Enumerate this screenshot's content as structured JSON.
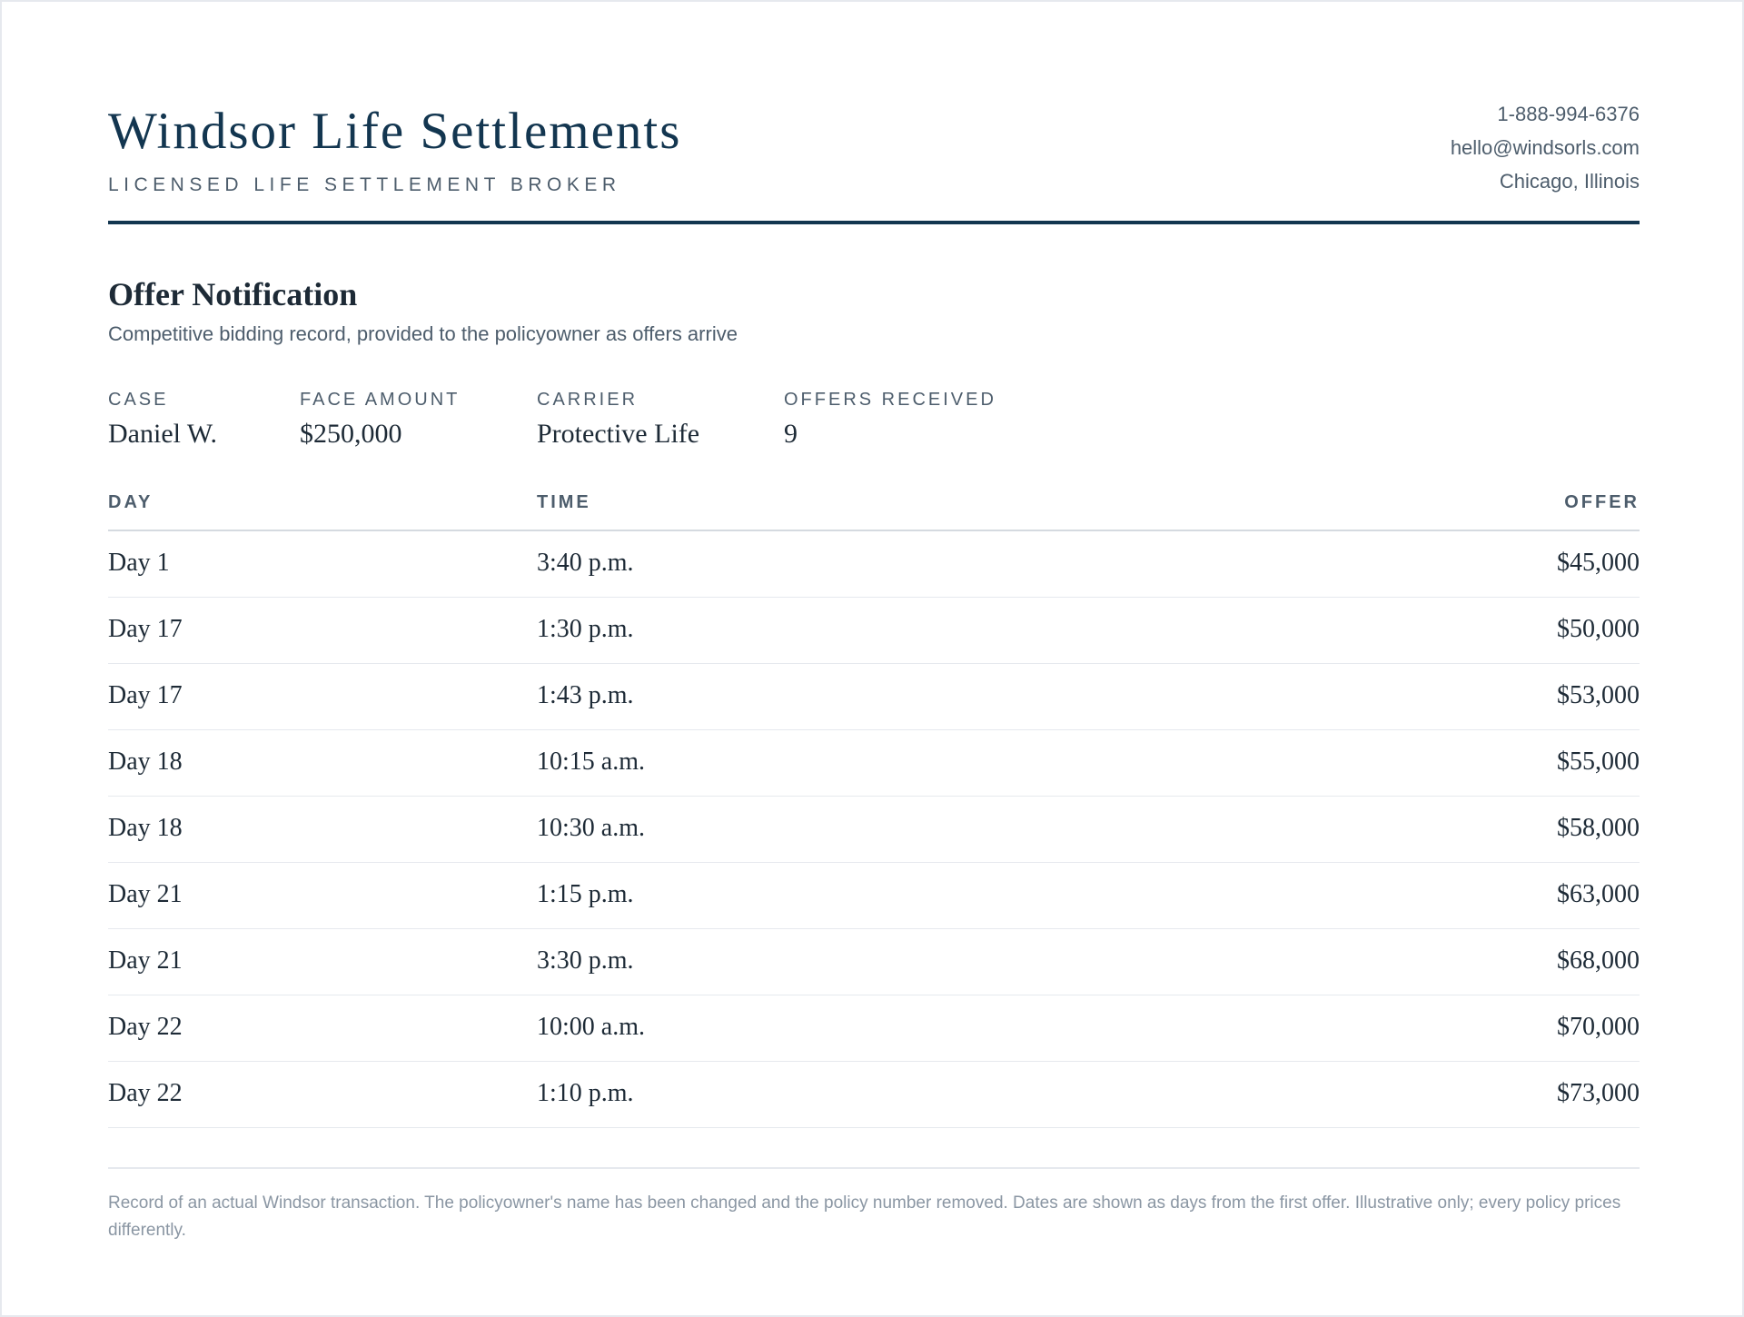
{
  "header": {
    "brand_title": "Windsor Life Settlements",
    "brand_tagline": "LICENSED LIFE SETTLEMENT BROKER",
    "contact": {
      "phone": "1-888-994-6376",
      "email": "hello@windsorls.com",
      "location": "Chicago, Illinois"
    }
  },
  "document": {
    "title": "Offer Notification",
    "subtitle": "Competitive bidding record, provided to the policyowner as offers arrive"
  },
  "meta": {
    "case_label": "CASE",
    "case_value": "Daniel W.",
    "face_label": "FACE AMOUNT",
    "face_value": "$250,000",
    "carrier_label": "CARRIER",
    "carrier_value": "Protective Life",
    "offers_label": "OFFERS RECEIVED",
    "offers_value": "9"
  },
  "table": {
    "headers": {
      "day": "DAY",
      "time": "TIME",
      "offer": "OFFER"
    },
    "rows": [
      {
        "day": "Day 1",
        "time": "3:40 p.m.",
        "offer": "$45,000"
      },
      {
        "day": "Day 17",
        "time": "1:30 p.m.",
        "offer": "$50,000"
      },
      {
        "day": "Day 17",
        "time": "1:43 p.m.",
        "offer": "$53,000"
      },
      {
        "day": "Day 18",
        "time": "10:15 a.m.",
        "offer": "$55,000"
      },
      {
        "day": "Day 18",
        "time": "10:30 a.m.",
        "offer": "$58,000"
      },
      {
        "day": "Day 21",
        "time": "1:15 p.m.",
        "offer": "$63,000"
      },
      {
        "day": "Day 21",
        "time": "3:30 p.m.",
        "offer": "$68,000"
      },
      {
        "day": "Day 22",
        "time": "10:00 a.m.",
        "offer": "$70,000"
      },
      {
        "day": "Day 22",
        "time": "1:10 p.m.",
        "offer": "$73,000"
      }
    ]
  },
  "footnote": "Record of an actual Windsor transaction. The policyowner's name has been changed and the policy number removed. Dates are shown as days from the first offer. Illustrative only; every policy prices differently."
}
